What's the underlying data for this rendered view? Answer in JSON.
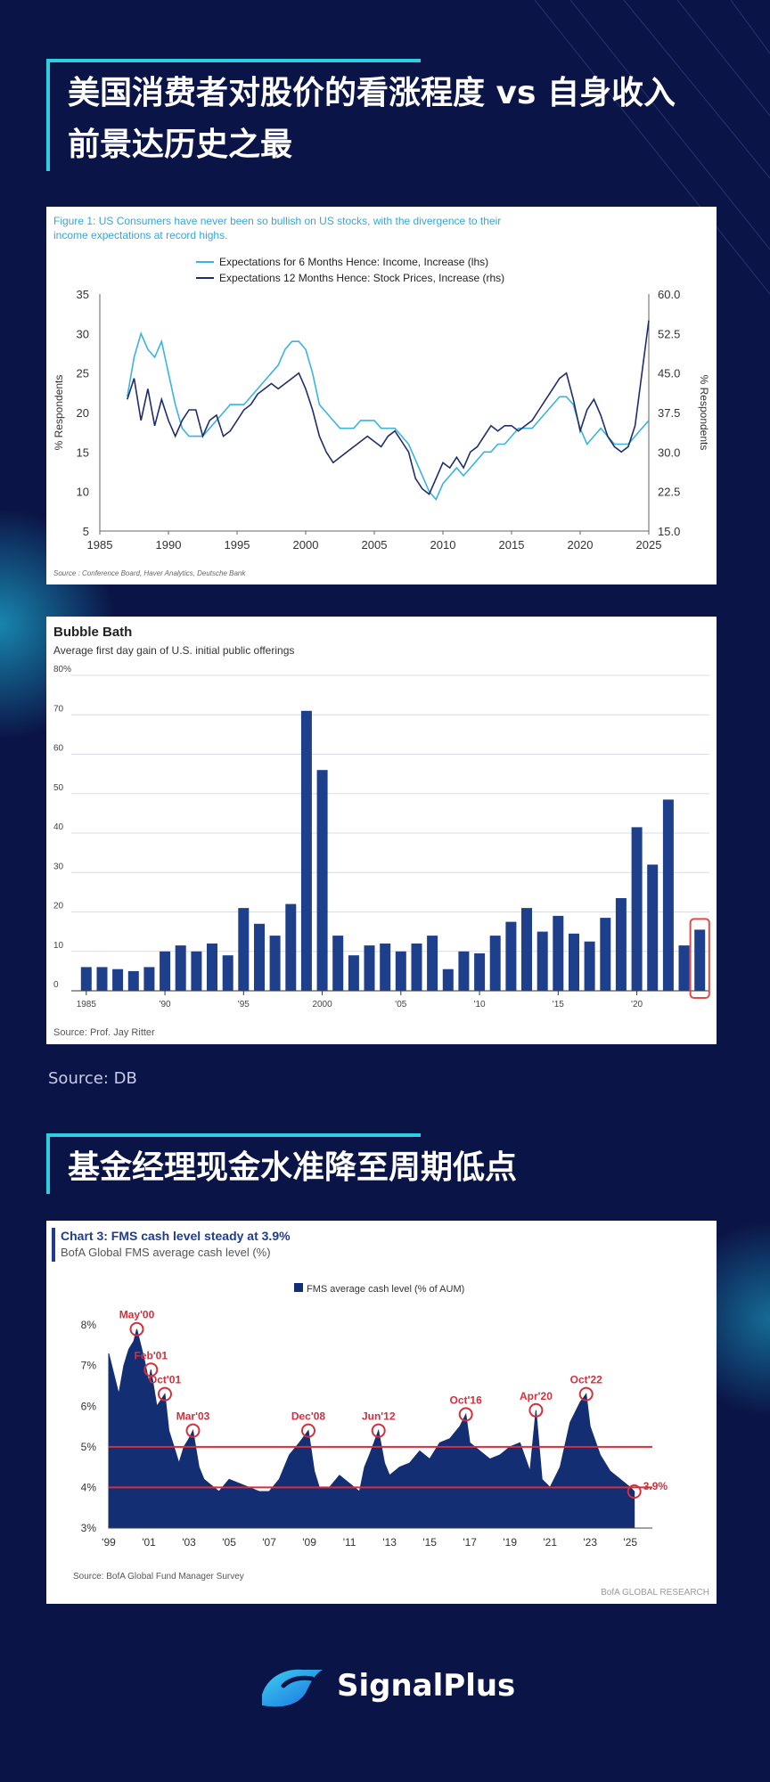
{
  "titles": {
    "section1": "美国消费者对股价的看涨程度 vs 自身收入前景达历史之最",
    "section2": "基金经理现金水准降至周期低点"
  },
  "source_note": "Source: DB",
  "brand": {
    "name": "SignalPlus"
  },
  "colors": {
    "background": "#0b1446",
    "accent": "#2ad0e0",
    "income_line": "#39b3e0",
    "stock_line": "#1f2d6b",
    "bar_blue": "#1e3f8c",
    "highlight_red": "#e04a4a",
    "fms_fill": "#142e73",
    "fms_red": "#d42f3b"
  },
  "chart_data": [
    {
      "type": "line",
      "title": "Figure 1: US Consumers have never been so bullish on US stocks, with the divergence to their income expectations at record highs.",
      "ylabel": "% Respondents",
      "y2label": "% Respondents",
      "source": "Source : Conference Board, Haver Analytics, Deutsche Bank",
      "xlim": [
        1985,
        2025
      ],
      "ylim": [
        5,
        35
      ],
      "y2lim": [
        15,
        60
      ],
      "xticks": [
        "1985",
        "1990",
        "1995",
        "2000",
        "2005",
        "2010",
        "2015",
        "2020",
        "2025"
      ],
      "yticks": [
        "35",
        "30",
        "25",
        "20",
        "15",
        "10",
        "5"
      ],
      "y2ticks": [
        "60.0",
        "52.5",
        "45.0",
        "37.5",
        "30.0",
        "22.5",
        "15.0"
      ],
      "legend_position": "top-center",
      "series": [
        {
          "name": "Expectations for 6 Months Hence: Income, Increase (lhs)",
          "axis": "left",
          "x": [
            1987,
            1987.5,
            1988,
            1988.5,
            1989,
            1989.5,
            1990,
            1990.5,
            1991,
            1991.5,
            1992,
            1992.5,
            1993,
            1993.5,
            1994,
            1994.5,
            1995,
            1995.5,
            1996,
            1996.5,
            1997,
            1997.5,
            1998,
            1998.5,
            1999,
            1999.5,
            2000,
            2000.5,
            2001,
            2001.5,
            2002,
            2002.5,
            2003,
            2003.5,
            2004,
            2004.5,
            2005,
            2005.5,
            2006,
            2006.5,
            2007,
            2007.5,
            2008,
            2008.5,
            2009,
            2009.5,
            2010,
            2010.5,
            2011,
            2011.5,
            2012,
            2012.5,
            2013,
            2013.5,
            2014,
            2014.5,
            2015,
            2015.5,
            2016,
            2016.5,
            2017,
            2017.5,
            2018,
            2018.5,
            2019,
            2019.5,
            2020,
            2020.5,
            2021,
            2021.5,
            2022,
            2022.5,
            2023,
            2023.5,
            2024,
            2024.5,
            2025
          ],
          "values": [
            22,
            27,
            30,
            28,
            27,
            29,
            25,
            21,
            18,
            17,
            17,
            17,
            18,
            19,
            20,
            21,
            21,
            21,
            22,
            23,
            24,
            25,
            26,
            28,
            29,
            29,
            28,
            25,
            21,
            20,
            19,
            18,
            18,
            18,
            19,
            19,
            19,
            18,
            18,
            18,
            17,
            16,
            14,
            12,
            10,
            9,
            11,
            12,
            13,
            12,
            13,
            14,
            15,
            15,
            16,
            16,
            17,
            18,
            18,
            18,
            19,
            20,
            21,
            22,
            22,
            21,
            18,
            16,
            17,
            18,
            17,
            16,
            16,
            16,
            17,
            18,
            19
          ]
        },
        {
          "name": "Expectations 12 Months Hence: Stock Prices, Increase (rhs)",
          "axis": "right",
          "x": [
            1987,
            1987.5,
            1988,
            1988.5,
            1989,
            1989.5,
            1990,
            1990.5,
            1991,
            1991.5,
            1992,
            1992.5,
            1993,
            1993.5,
            1994,
            1994.5,
            1995,
            1995.5,
            1996,
            1996.5,
            1997,
            1997.5,
            1998,
            1998.5,
            1999,
            1999.5,
            2000,
            2000.5,
            2001,
            2001.5,
            2002,
            2002.5,
            2003,
            2003.5,
            2004,
            2004.5,
            2005,
            2005.5,
            2006,
            2006.5,
            2007,
            2007.5,
            2008,
            2008.5,
            2009,
            2009.5,
            2010,
            2010.5,
            2011,
            2011.5,
            2012,
            2012.5,
            2013,
            2013.5,
            2014,
            2014.5,
            2015,
            2015.5,
            2016,
            2016.5,
            2017,
            2017.5,
            2018,
            2018.5,
            2019,
            2019.5,
            2020,
            2020.5,
            2021,
            2021.5,
            2022,
            2022.5,
            2023,
            2023.5,
            2024,
            2024.5,
            2025
          ],
          "values": [
            40,
            44,
            36,
            42,
            35,
            40,
            36,
            33,
            36,
            38,
            38,
            33,
            36,
            37,
            33,
            34,
            36,
            38,
            39,
            41,
            42,
            43,
            42,
            43,
            44,
            45,
            42,
            38,
            33,
            30,
            28,
            29,
            30,
            31,
            32,
            33,
            32,
            31,
            33,
            34,
            32,
            30,
            25,
            23,
            22,
            25,
            28,
            27,
            29,
            27,
            30,
            31,
            33,
            35,
            34,
            35,
            35,
            34,
            35,
            36,
            38,
            40,
            42,
            44,
            45,
            40,
            34,
            38,
            40,
            37,
            33,
            31,
            30,
            31,
            35,
            45,
            55
          ]
        }
      ]
    },
    {
      "type": "bar",
      "title": "Bubble Bath",
      "subtitle": "Average first day gain of U.S. initial public offerings",
      "source": "Source: Prof. Jay Ritter",
      "ylim": [
        0,
        80
      ],
      "yticks": [
        "80%",
        "70",
        "60",
        "50",
        "40",
        "30",
        "20",
        "10",
        "0"
      ],
      "xticks": [
        "1985",
        "'90",
        "'95",
        "2000",
        "'05",
        "'10",
        "'15",
        "'20"
      ],
      "categories": [
        "1985",
        "1986",
        "1987",
        "1988",
        "1989",
        "1990",
        "1991",
        "1992",
        "1993",
        "1994",
        "1995",
        "1996",
        "1997",
        "1998",
        "1999",
        "2000",
        "2001",
        "2002",
        "2003",
        "2004",
        "2005",
        "2006",
        "2007",
        "2008",
        "2009",
        "2010",
        "2011",
        "2012",
        "2013",
        "2014",
        "2015",
        "2016",
        "2017",
        "2018",
        "2019",
        "2020",
        "2021",
        "2022",
        "2023",
        "2024"
      ],
      "values": [
        6,
        6,
        5.5,
        5,
        6,
        10,
        11.5,
        10,
        12,
        9,
        21,
        17,
        14,
        22,
        71,
        56,
        14,
        9,
        11.5,
        12,
        10,
        12,
        14,
        5.5,
        10,
        9.5,
        14,
        17.5,
        21,
        15,
        19,
        14.5,
        12.5,
        18.5,
        23.5,
        41.5,
        32,
        48.5,
        11.5,
        15.5
      ],
      "highlighted": [
        "2024"
      ]
    },
    {
      "type": "area",
      "title": "Chart 3: FMS cash level steady at 3.9%",
      "subtitle": "BofA Global FMS average cash level (%)",
      "legend": "FMS average cash level (% of AUM)",
      "source": "Source: BofA Global Fund Manager Survey",
      "footer": "BofA GLOBAL RESEARCH",
      "ylim": [
        3,
        8.2
      ],
      "yticks": [
        "8%",
        "7%",
        "6%",
        "5%",
        "4%",
        "3%"
      ],
      "xticks": [
        "'99",
        "'01",
        "'03",
        "'05",
        "'07",
        "'09",
        "'11",
        "'13",
        "'15",
        "'17",
        "'19",
        "'21",
        "'23",
        "'25"
      ],
      "reference_lines": [
        5.0,
        4.0
      ],
      "annotations": [
        {
          "label": "May'00",
          "x": 2000.4,
          "y": 7.9
        },
        {
          "label": "Feb'01",
          "x": 2001.1,
          "y": 6.9
        },
        {
          "label": "Oct'01",
          "x": 2001.8,
          "y": 6.3
        },
        {
          "label": "Mar'03",
          "x": 2003.2,
          "y": 5.4
        },
        {
          "label": "Dec'08",
          "x": 2008.95,
          "y": 5.4
        },
        {
          "label": "Jun'12",
          "x": 2012.45,
          "y": 5.4
        },
        {
          "label": "Oct'16",
          "x": 2016.8,
          "y": 5.8
        },
        {
          "label": "Apr'20",
          "x": 2020.3,
          "y": 5.9
        },
        {
          "label": "Oct'22",
          "x": 2022.8,
          "y": 6.3
        },
        {
          "label": "3.9%",
          "x": 2025.2,
          "y": 3.9
        }
      ],
      "x": [
        1999,
        1999.25,
        1999.5,
        1999.75,
        2000,
        2000.25,
        2000.4,
        2000.75,
        2001,
        2001.1,
        2001.4,
        2001.8,
        2002,
        2002.25,
        2002.5,
        2002.75,
        2003,
        2003.2,
        2003.5,
        2003.75,
        2004,
        2004.5,
        2005,
        2005.5,
        2006,
        2006.5,
        2007,
        2007.5,
        2008,
        2008.5,
        2008.95,
        2009.25,
        2009.5,
        2010,
        2010.5,
        2011,
        2011.5,
        2011.75,
        2012,
        2012.45,
        2012.75,
        2013,
        2013.5,
        2014,
        2014.5,
        2015,
        2015.5,
        2016,
        2016.5,
        2016.8,
        2017,
        2017.5,
        2018,
        2018.5,
        2019,
        2019.5,
        2020,
        2020.3,
        2020.6,
        2021,
        2021.5,
        2022,
        2022.5,
        2022.8,
        2023,
        2023.5,
        2024,
        2024.5,
        2025,
        2025.2
      ],
      "values": [
        7.3,
        6.8,
        6.3,
        7.0,
        7.4,
        7.6,
        7.9,
        7.2,
        6.6,
        6.9,
        6.0,
        6.3,
        5.4,
        5.0,
        4.6,
        5.0,
        5.2,
        5.4,
        4.5,
        4.2,
        4.1,
        3.9,
        4.2,
        4.1,
        4.0,
        3.9,
        3.9,
        4.2,
        4.8,
        5.1,
        5.4,
        4.4,
        4.0,
        4.0,
        4.3,
        4.1,
        3.9,
        4.5,
        4.8,
        5.4,
        4.6,
        4.3,
        4.5,
        4.6,
        4.9,
        4.7,
        5.1,
        5.2,
        5.5,
        5.8,
        5.1,
        4.9,
        4.7,
        4.8,
        5.0,
        5.1,
        4.4,
        5.9,
        4.2,
        4.0,
        4.5,
        5.6,
        6.1,
        6.3,
        5.5,
        4.8,
        4.4,
        4.2,
        4.0,
        3.9
      ]
    }
  ]
}
